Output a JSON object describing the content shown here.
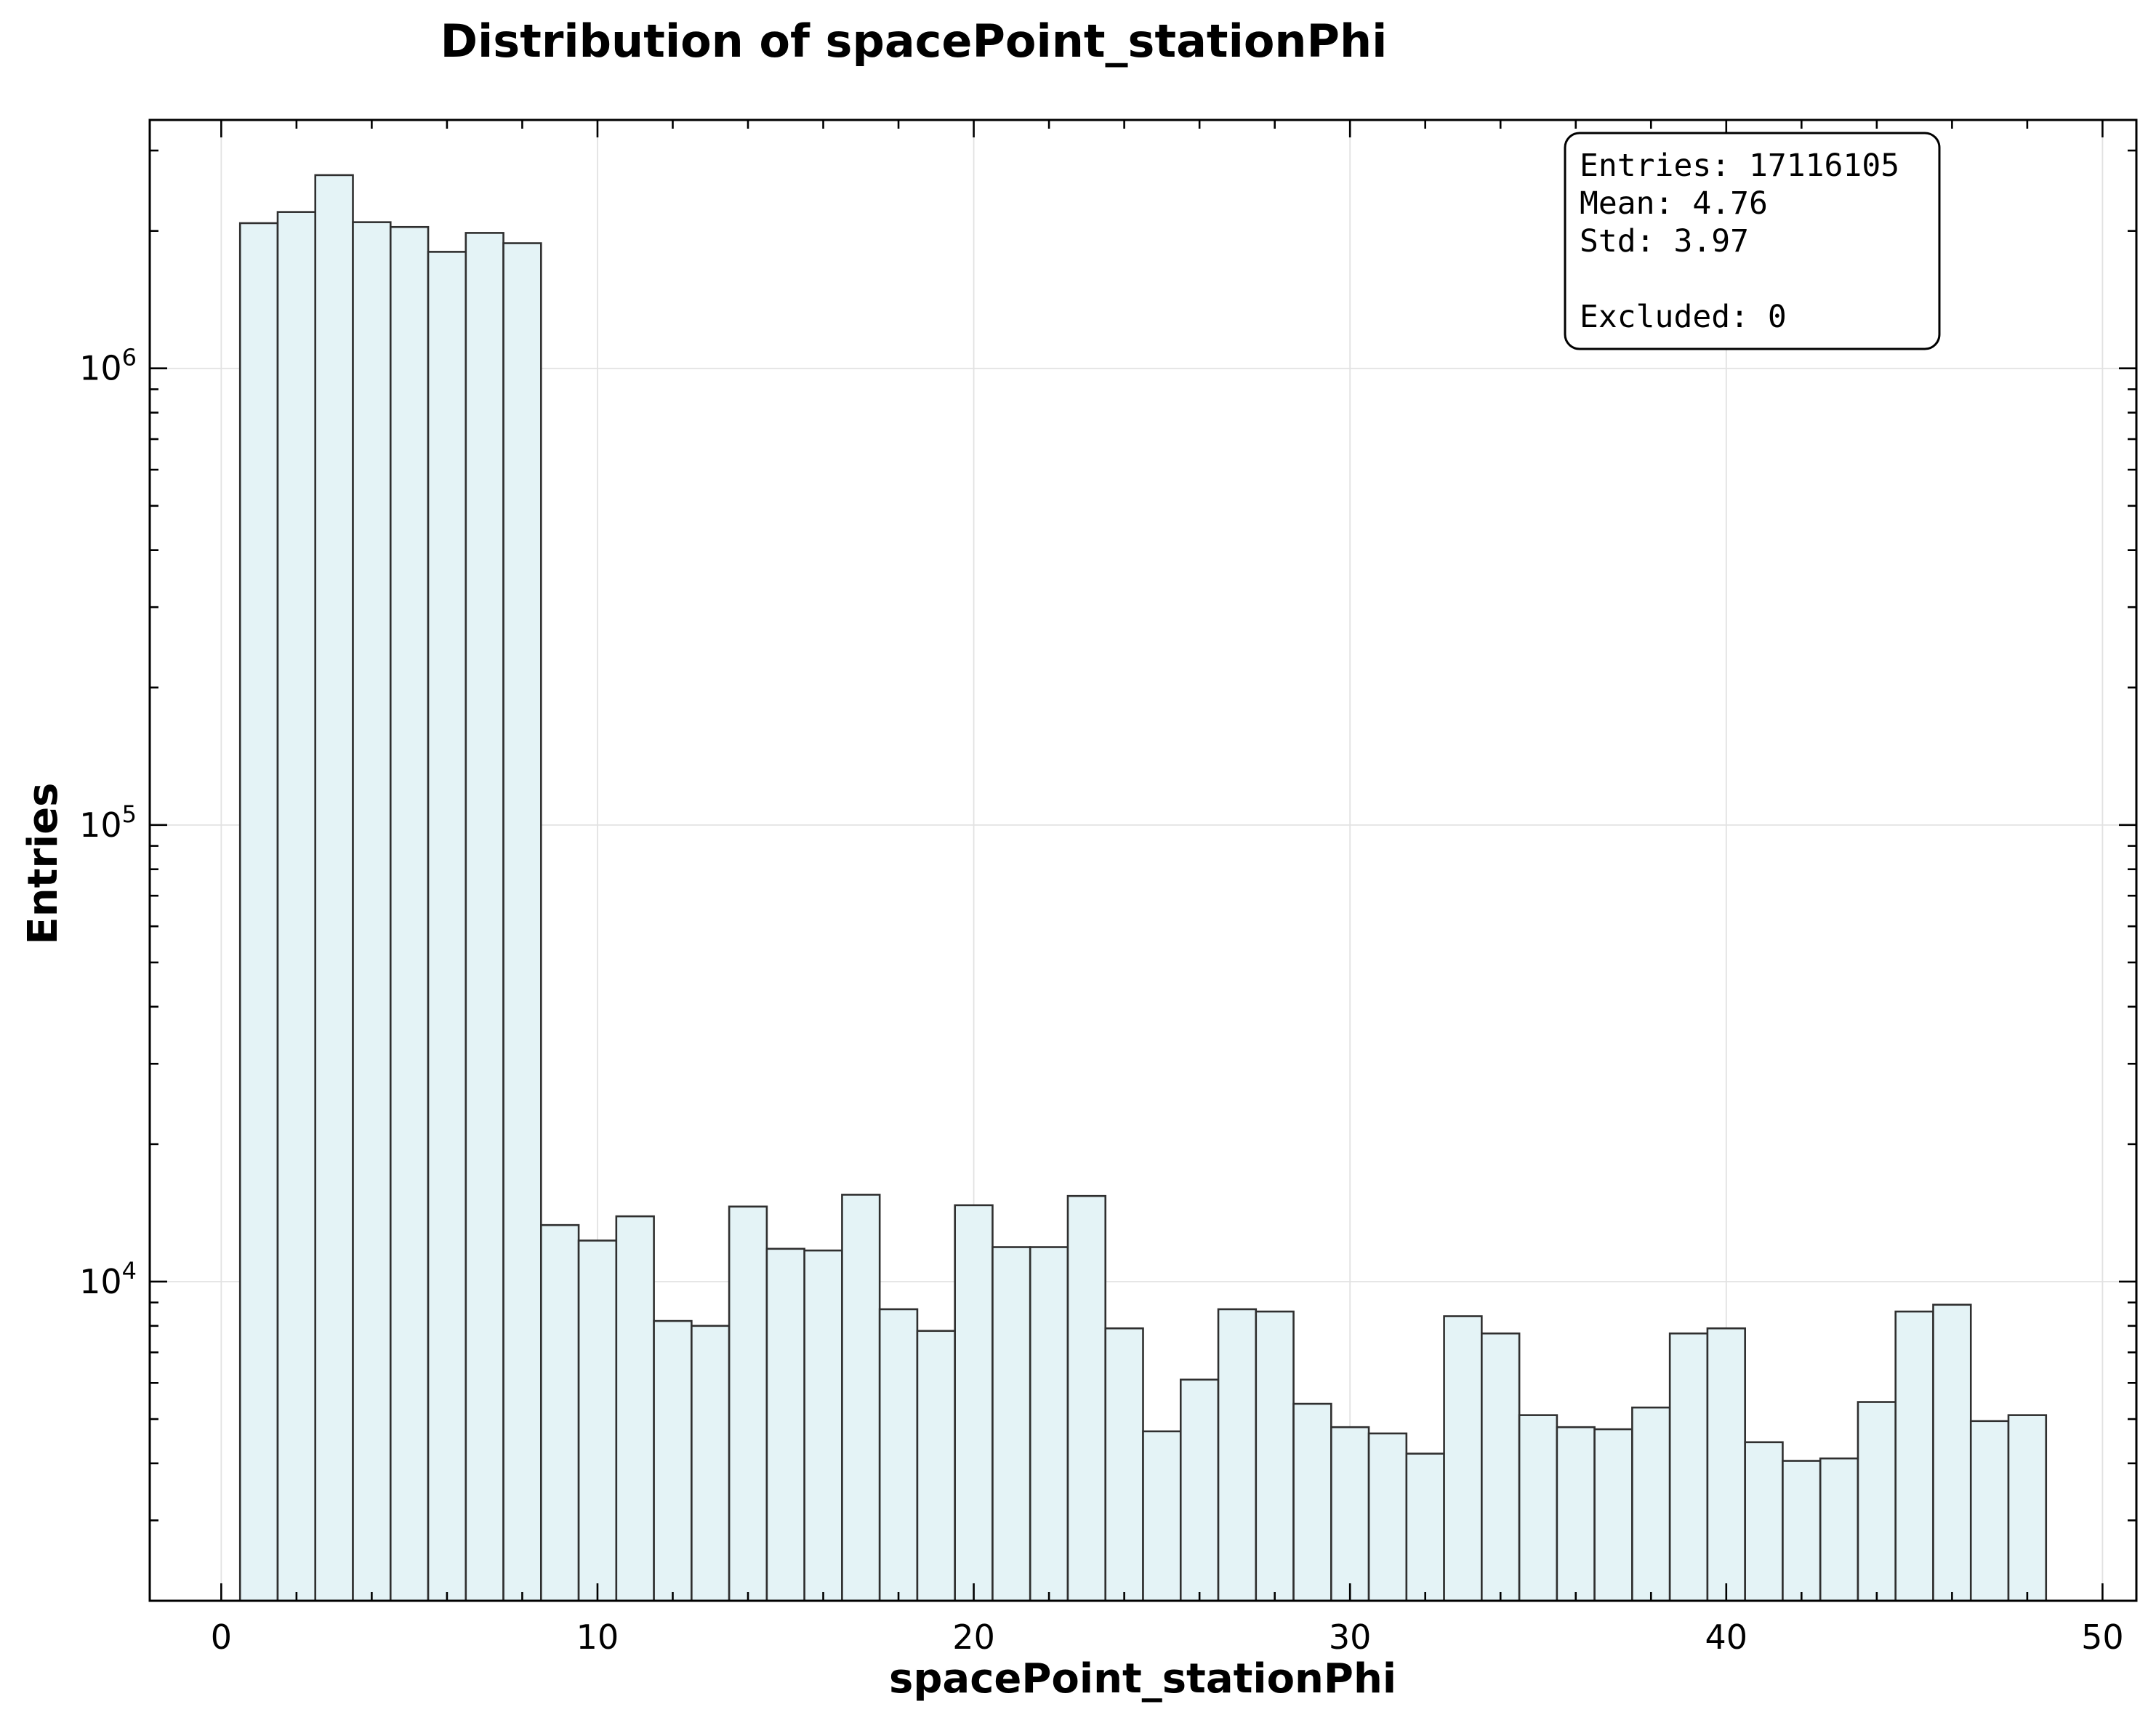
{
  "chart_data": {
    "type": "bar",
    "title": "Distribution of spacePoint_stationPhi",
    "xlabel": "spacePoint_stationPhi",
    "ylabel": "Entries",
    "xlim": [
      -1.9,
      50.9
    ],
    "ylim": [
      2000,
      3500000
    ],
    "yscale": "log",
    "grid": true,
    "x_ticks": [
      0,
      10,
      20,
      30,
      40,
      50
    ],
    "y_ticks": [
      {
        "value": 10000,
        "base": "10",
        "exp": "4"
      },
      {
        "value": 100000,
        "base": "10",
        "exp": "5"
      },
      {
        "value": 1000000,
        "base": "10",
        "exp": "6"
      }
    ],
    "bin_edges": [
      0.5,
      1.5,
      2.5,
      3.5,
      4.5,
      5.5,
      6.5,
      7.5,
      8.5,
      9.5,
      10.5,
      11.5,
      12.5,
      13.5,
      14.5,
      15.5,
      16.5,
      17.5,
      18.5,
      19.5,
      20.5,
      21.5,
      22.5,
      23.5,
      24.5,
      25.5,
      26.5,
      27.5,
      28.5,
      29.5,
      30.5,
      31.5,
      32.5,
      33.5,
      34.5,
      35.5,
      36.5,
      37.5,
      38.5,
      39.5,
      40.5,
      41.5,
      42.5,
      43.5,
      44.5,
      45.5,
      46.5,
      47.5,
      48.5
    ],
    "values": [
      2080000,
      2200000,
      2650000,
      2090000,
      2040000,
      1800000,
      1980000,
      1880000,
      13300,
      12300,
      13900,
      8200,
      8000,
      14600,
      11800,
      11700,
      15500,
      8700,
      7800,
      14700,
      11900,
      11900,
      15400,
      7900,
      4700,
      6100,
      8700,
      8600,
      5400,
      4800,
      4650,
      4200,
      8400,
      7700,
      5100,
      4800,
      4750,
      5300,
      7700,
      7900,
      4450,
      4050,
      4100,
      5450,
      8600,
      8900,
      4950,
      5100
    ]
  },
  "stats_box": {
    "entries": "Entries: 17116105",
    "mean": "Mean: 4.76",
    "std": "Std: 3.97",
    "excluded": "Excluded: 0"
  }
}
